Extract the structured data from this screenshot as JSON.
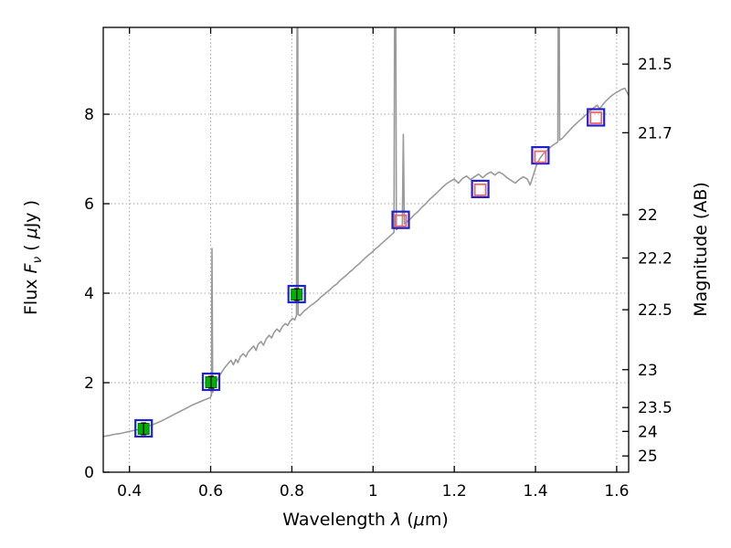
{
  "chart_data": {
    "type": "line+scatter",
    "title": "",
    "xlabel": "Wavelength λ (μm)",
    "ylabel_left": "Flux Fν ( μJy )",
    "ylabel_right": "Magnitude (AB)",
    "xlabel_parts": [
      {
        "t": "Wavelength  "
      },
      {
        "t": "λ",
        "i": true
      },
      {
        "t": " ("
      },
      {
        "t": "μ",
        "i": true
      },
      {
        "t": "m)"
      }
    ],
    "ylabel_left_parts": [
      {
        "t": "Flux  "
      },
      {
        "t": "F",
        "i": true
      },
      {
        "t": "ν",
        "i": true,
        "sub": true
      },
      {
        "t": " ( "
      },
      {
        "t": "μ",
        "i": true
      },
      {
        "t": "Jy )"
      }
    ],
    "xlim": [
      0.3355,
      1.6295
    ],
    "ylim": [
      0,
      9.94
    ],
    "ab_zero_point": 23.9,
    "x_ticks": [
      {
        "v": 0.4,
        "label": "0.4"
      },
      {
        "v": 0.6,
        "label": "0.6"
      },
      {
        "v": 0.8,
        "label": "0.8"
      },
      {
        "v": 1.0,
        "label": "1"
      },
      {
        "v": 1.2,
        "label": "1.2"
      },
      {
        "v": 1.4,
        "label": "1.4"
      },
      {
        "v": 1.6,
        "label": "1.6"
      }
    ],
    "y_ticks_left": [
      {
        "v": 0,
        "label": "0"
      },
      {
        "v": 2,
        "label": "2"
      },
      {
        "v": 4,
        "label": "4"
      },
      {
        "v": 6,
        "label": "6"
      },
      {
        "v": 8,
        "label": "8"
      }
    ],
    "y_ticks_right": [
      {
        "mag": 21.5,
        "label": "21.5"
      },
      {
        "mag": 21.7,
        "label": "21.7"
      },
      {
        "mag": 22.0,
        "label": "22"
      },
      {
        "mag": 22.2,
        "label": "22.2"
      },
      {
        "mag": 22.5,
        "label": "22.5"
      },
      {
        "mag": 23.0,
        "label": "23"
      },
      {
        "mag": 23.5,
        "label": "23.5"
      },
      {
        "mag": 24.0,
        "label": "24"
      },
      {
        "mag": 25.0,
        "label": "25"
      }
    ],
    "grid": {
      "style": "dotted",
      "color": "#a3a3a3",
      "x_values": [
        0.4,
        0.6,
        0.8,
        1.0,
        1.2,
        1.4,
        1.6
      ],
      "y_values": [
        2,
        4,
        6,
        8
      ]
    },
    "spectrum": {
      "id": "model-spectrum",
      "color": "#9a9a9a",
      "points": [
        [
          0.336,
          0.8
        ],
        [
          0.35,
          0.82
        ],
        [
          0.365,
          0.85
        ],
        [
          0.38,
          0.87
        ],
        [
          0.395,
          0.9
        ],
        [
          0.41,
          0.93
        ],
        [
          0.42,
          0.95
        ],
        [
          0.435,
          0.99
        ],
        [
          0.45,
          1.04
        ],
        [
          0.465,
          1.09
        ],
        [
          0.48,
          1.15
        ],
        [
          0.495,
          1.22
        ],
        [
          0.51,
          1.29
        ],
        [
          0.525,
          1.36
        ],
        [
          0.54,
          1.43
        ],
        [
          0.555,
          1.5
        ],
        [
          0.57,
          1.56
        ],
        [
          0.583,
          1.61
        ],
        [
          0.592,
          1.64
        ],
        [
          0.599,
          1.67
        ],
        [
          0.602,
          1.72
        ],
        [
          0.6033,
          5.0
        ],
        [
          0.605,
          1.78
        ],
        [
          0.609,
          1.9
        ],
        [
          0.614,
          2.02
        ],
        [
          0.62,
          2.12
        ],
        [
          0.628,
          2.25
        ],
        [
          0.636,
          2.35
        ],
        [
          0.644,
          2.44
        ],
        [
          0.65,
          2.5
        ],
        [
          0.656,
          2.4
        ],
        [
          0.662,
          2.52
        ],
        [
          0.667,
          2.45
        ],
        [
          0.673,
          2.58
        ],
        [
          0.68,
          2.65
        ],
        [
          0.687,
          2.58
        ],
        [
          0.692,
          2.68
        ],
        [
          0.699,
          2.75
        ],
        [
          0.706,
          2.82
        ],
        [
          0.712,
          2.72
        ],
        [
          0.717,
          2.86
        ],
        [
          0.724,
          2.92
        ],
        [
          0.73,
          2.84
        ],
        [
          0.737,
          2.98
        ],
        [
          0.744,
          3.06
        ],
        [
          0.75,
          3.0
        ],
        [
          0.756,
          3.12
        ],
        [
          0.763,
          3.2
        ],
        [
          0.77,
          3.14
        ],
        [
          0.777,
          3.26
        ],
        [
          0.784,
          3.32
        ],
        [
          0.79,
          3.28
        ],
        [
          0.796,
          3.38
        ],
        [
          0.802,
          3.44
        ],
        [
          0.807,
          3.4
        ],
        [
          0.8115,
          3.5
        ],
        [
          0.8133,
          12.0
        ],
        [
          0.8142,
          12.0
        ],
        [
          0.8155,
          3.52
        ],
        [
          0.82,
          3.5
        ],
        [
          0.83,
          3.6
        ],
        [
          0.838,
          3.66
        ],
        [
          0.846,
          3.72
        ],
        [
          0.854,
          3.77
        ],
        [
          0.862,
          3.83
        ],
        [
          0.87,
          3.9
        ],
        [
          0.878,
          3.96
        ],
        [
          0.886,
          4.02
        ],
        [
          0.894,
          4.08
        ],
        [
          0.902,
          4.15
        ],
        [
          0.91,
          4.2
        ],
        [
          0.918,
          4.28
        ],
        [
          0.926,
          4.34
        ],
        [
          0.934,
          4.4
        ],
        [
          0.942,
          4.47
        ],
        [
          0.95,
          4.53
        ],
        [
          0.958,
          4.6
        ],
        [
          0.966,
          4.66
        ],
        [
          0.974,
          4.73
        ],
        [
          0.982,
          4.8
        ],
        [
          0.99,
          4.86
        ],
        [
          0.998,
          4.92
        ],
        [
          1.006,
          4.99
        ],
        [
          1.014,
          5.05
        ],
        [
          1.022,
          5.12
        ],
        [
          1.03,
          5.18
        ],
        [
          1.038,
          5.25
        ],
        [
          1.046,
          5.31
        ],
        [
          1.0515,
          5.36
        ],
        [
          1.0535,
          12.0
        ],
        [
          1.0555,
          12.0
        ],
        [
          1.0575,
          5.42
        ],
        [
          1.062,
          5.46
        ],
        [
          1.068,
          5.5
        ],
        [
          1.072,
          5.52
        ],
        [
          1.0745,
          7.55
        ],
        [
          1.077,
          5.55
        ],
        [
          1.084,
          5.6
        ],
        [
          1.092,
          5.66
        ],
        [
          1.1,
          5.74
        ],
        [
          1.11,
          5.82
        ],
        [
          1.12,
          5.92
        ],
        [
          1.13,
          6.0
        ],
        [
          1.14,
          6.1
        ],
        [
          1.15,
          6.18
        ],
        [
          1.16,
          6.27
        ],
        [
          1.17,
          6.36
        ],
        [
          1.18,
          6.44
        ],
        [
          1.19,
          6.5
        ],
        [
          1.2,
          6.55
        ],
        [
          1.21,
          6.46
        ],
        [
          1.22,
          6.56
        ],
        [
          1.23,
          6.62
        ],
        [
          1.24,
          6.54
        ],
        [
          1.25,
          6.6
        ],
        [
          1.26,
          6.66
        ],
        [
          1.27,
          6.58
        ],
        [
          1.28,
          6.66
        ],
        [
          1.29,
          6.71
        ],
        [
          1.3,
          6.64
        ],
        [
          1.31,
          6.71
        ],
        [
          1.32,
          6.66
        ],
        [
          1.33,
          6.58
        ],
        [
          1.34,
          6.52
        ],
        [
          1.35,
          6.46
        ],
        [
          1.36,
          6.54
        ],
        [
          1.37,
          6.6
        ],
        [
          1.38,
          6.55
        ],
        [
          1.387,
          6.42
        ],
        [
          1.394,
          6.62
        ],
        [
          1.402,
          6.85
        ],
        [
          1.41,
          7.0
        ],
        [
          1.418,
          7.1
        ],
        [
          1.426,
          7.17
        ],
        [
          1.434,
          7.24
        ],
        [
          1.442,
          7.3
        ],
        [
          1.45,
          7.35
        ],
        [
          1.455,
          7.38
        ],
        [
          1.4565,
          12.0
        ],
        [
          1.458,
          12.0
        ],
        [
          1.4595,
          7.42
        ],
        [
          1.466,
          7.46
        ],
        [
          1.474,
          7.54
        ],
        [
          1.482,
          7.62
        ],
        [
          1.49,
          7.7
        ],
        [
          1.498,
          7.77
        ],
        [
          1.506,
          7.84
        ],
        [
          1.514,
          7.9
        ],
        [
          1.522,
          7.97
        ],
        [
          1.53,
          8.03
        ],
        [
          1.538,
          8.1
        ],
        [
          1.546,
          8.16
        ],
        [
          1.552,
          8.2
        ],
        [
          1.558,
          8.12
        ],
        [
          1.566,
          8.22
        ],
        [
          1.574,
          8.3
        ],
        [
          1.582,
          8.37
        ],
        [
          1.59,
          8.43
        ],
        [
          1.598,
          8.48
        ],
        [
          1.606,
          8.52
        ],
        [
          1.614,
          8.56
        ],
        [
          1.62,
          8.58
        ],
        [
          1.625,
          8.5
        ],
        [
          1.6295,
          8.42
        ]
      ]
    },
    "series": [
      {
        "id": "blue-squares",
        "marker": "open-square",
        "color": "#2121cc",
        "size": 18,
        "stroke_width": 2.2,
        "points": [
          [
            0.435,
            0.98
          ],
          [
            0.601,
            2.02
          ],
          [
            0.812,
            3.98
          ],
          [
            1.068,
            5.64
          ],
          [
            1.264,
            6.33
          ],
          [
            1.412,
            7.08
          ],
          [
            1.549,
            7.93
          ]
        ]
      },
      {
        "id": "red-squares",
        "marker": "open-square",
        "color": "#ee6666",
        "size": 12,
        "stroke_width": 1.8,
        "points": [
          [
            1.068,
            5.62
          ],
          [
            1.264,
            6.31
          ],
          [
            1.412,
            7.05
          ],
          [
            1.549,
            7.92
          ]
        ]
      },
      {
        "id": "green-squares",
        "marker": "filled-square",
        "color": "#00b200",
        "edge_color": "#007700",
        "size": 12,
        "stroke_width": 1,
        "yerr": 0.13,
        "error_color": "#000000",
        "points": [
          [
            0.435,
            0.97
          ],
          [
            0.601,
            2.01
          ],
          [
            0.812,
            3.97
          ]
        ]
      }
    ]
  }
}
